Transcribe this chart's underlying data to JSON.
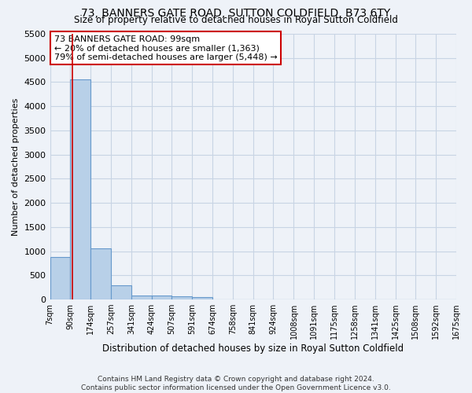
{
  "title": "73, BANNERS GATE ROAD, SUTTON COLDFIELD, B73 6TY",
  "subtitle": "Size of property relative to detached houses in Royal Sutton Coldfield",
  "xlabel": "Distribution of detached houses by size in Royal Sutton Coldfield",
  "ylabel": "Number of detached properties",
  "footer_line1": "Contains HM Land Registry data © Crown copyright and database right 2024.",
  "footer_line2": "Contains public sector information licensed under the Open Government Licence v3.0.",
  "annotation_line1": "73 BANNERS GATE ROAD: 99sqm",
  "annotation_line2": "← 20% of detached houses are smaller (1,363)",
  "annotation_line3": "79% of semi-detached houses are larger (5,448) →",
  "bar_color": "#b8d0e8",
  "bar_edge_color": "#6699cc",
  "grid_color": "#c8d4e4",
  "bg_color": "#eef2f8",
  "vline_color": "#cc0000",
  "bin_edges": [
    7,
    90,
    174,
    257,
    341,
    424,
    507,
    591,
    674,
    758,
    841,
    924,
    1008,
    1091,
    1175,
    1258,
    1341,
    1425,
    1508,
    1592,
    1675
  ],
  "bin_labels": [
    "7sqm",
    "90sqm",
    "174sqm",
    "257sqm",
    "341sqm",
    "424sqm",
    "507sqm",
    "591sqm",
    "674sqm",
    "758sqm",
    "841sqm",
    "924sqm",
    "1008sqm",
    "1091sqm",
    "1175sqm",
    "1258sqm",
    "1341sqm",
    "1425sqm",
    "1508sqm",
    "1592sqm",
    "1675sqm"
  ],
  "bar_heights": [
    880,
    4560,
    1060,
    290,
    90,
    80,
    60,
    50,
    0,
    0,
    0,
    0,
    0,
    0,
    0,
    0,
    0,
    0,
    0,
    0
  ],
  "vline_x": 99,
  "ylim": [
    0,
    5500
  ],
  "yticks": [
    0,
    500,
    1000,
    1500,
    2000,
    2500,
    3000,
    3500,
    4000,
    4500,
    5000,
    5500
  ]
}
